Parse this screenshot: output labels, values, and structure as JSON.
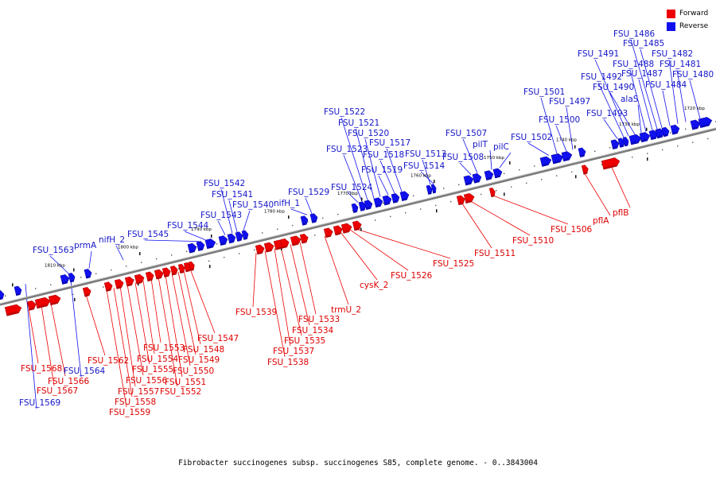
{
  "caption": "Fibrobacter succinogenes subsp. succinogenes S85, complete genome. - 0..3843004",
  "legend": [
    {
      "label": "Forward",
      "color": "#ee0000"
    },
    {
      "label": "Reverse",
      "color": "#1010ee"
    }
  ],
  "colors": {
    "forward": "#ee0000",
    "reverse": "#1010ee",
    "backbone": "#888888"
  },
  "kbp_ticks": [
    "1810 kbp",
    "1800 kbp",
    "1790 kbp",
    "1780 kbp",
    "1770 kbp",
    "1760 kbp",
    "1750 kbp",
    "1740 kbp",
    "1730 kbp",
    "1720 kbp"
  ],
  "reverse_genes": [
    "FSU_1569",
    "FSU_1564",
    "FSU_1563",
    "prmA",
    "nifH_2",
    "FSU_1545",
    "FSU_1544",
    "FSU_1543",
    "FSU_1542",
    "FSU_1541",
    "FSU_1540",
    "FSU_1529",
    "nifH_1",
    "FSU_1524",
    "FSU_1523",
    "FSU_1522",
    "FSU_1521",
    "FSU_1520",
    "FSU_1519",
    "FSU_1518",
    "FSU_1517",
    "FSU_1514",
    "FSU_1513",
    "FSU_1508",
    "FSU_1507",
    "pilT",
    "pilC",
    "FSU_1502",
    "FSU_1501",
    "FSU_1500",
    "FSU_1497",
    "FSU_1493",
    "FSU_1492",
    "FSU_1491",
    "FSU_1490",
    "alaS",
    "FSU_1488",
    "FSU_1487",
    "FSU_1486",
    "FSU_1485",
    "FSU_1484",
    "FSU_1482",
    "FSU_1481",
    "FSU_1480"
  ],
  "forward_genes": [
    "FSU_1568",
    "FSU_1567",
    "FSU_1566",
    "FSU_1562",
    "FSU_1559",
    "FSU_1558",
    "FSU_1557",
    "FSU_1556",
    "FSU_1555",
    "FSU_1554",
    "FSU_1553",
    "FSU_1552",
    "FSU_1551",
    "FSU_1550",
    "FSU_1549",
    "FSU_1548",
    "FSU_1547",
    "FSU_1539",
    "FSU_1538",
    "FSU_1537",
    "FSU_1535",
    "FSU_1534",
    "FSU_1533",
    "trmU_2",
    "cysK_2",
    "FSU_1526",
    "FSU_1525",
    "FSU_1511",
    "FSU_1510",
    "FSU_1506",
    "pflA",
    "pflB"
  ]
}
